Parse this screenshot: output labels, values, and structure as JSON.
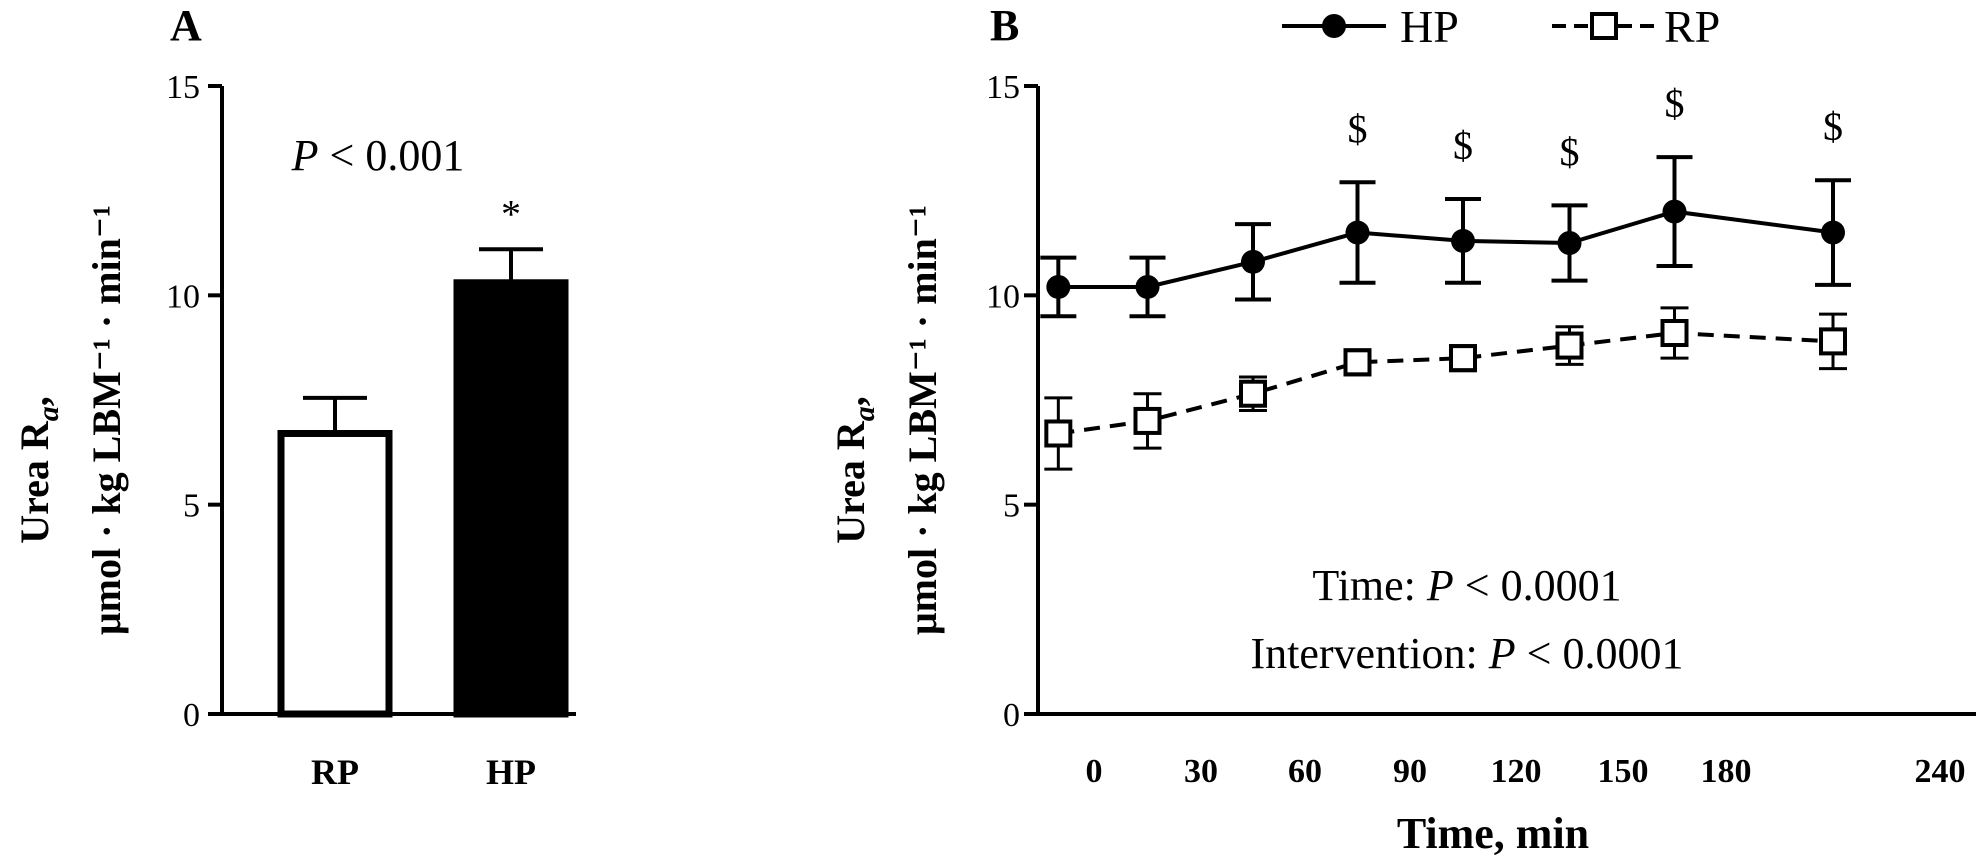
{
  "chart_data": [
    {
      "panel": "A",
      "type": "bar",
      "categories": [
        "RP",
        "HP"
      ],
      "values": [
        6.7,
        10.3
      ],
      "errors": [
        0.85,
        0.8
      ],
      "ylim": [
        0,
        15
      ],
      "yticks": [
        0,
        5,
        10,
        15
      ],
      "ylabel_line1": "Urea R",
      "ylabel_sub": "a",
      "ylabel_comma": ",",
      "ylabel_line2": "μmol · kg LBM⁻¹ · min⁻¹",
      "annotation_p": "P",
      "annotation_rest": " < 0.001",
      "significance_mark": "*",
      "bar_fills": [
        "#ffffff",
        "#000000"
      ]
    },
    {
      "panel": "B",
      "type": "line",
      "x_axis": {
        "label": "Time, min",
        "ticks": [
          0,
          30,
          60,
          90,
          120,
          150,
          180,
          240
        ],
        "xlim": [
          -15,
          240
        ]
      },
      "y_axis": {
        "ylim": [
          0,
          15
        ],
        "yticks": [
          0,
          5,
          10,
          15
        ],
        "ylabel_line1": "Urea R",
        "ylabel_sub": "a",
        "ylabel_comma": ",",
        "ylabel_line2": "μmol · kg LBM⁻¹ · min⁻¹"
      },
      "x": [
        -10,
        15,
        45,
        75,
        105,
        135,
        165,
        210
      ],
      "series": [
        {
          "name": "HP",
          "values": [
            10.2,
            10.2,
            10.8,
            11.5,
            11.3,
            11.25,
            12.0,
            11.5
          ],
          "errors": [
            0.7,
            0.7,
            0.9,
            1.2,
            1.0,
            0.9,
            1.3,
            1.25
          ],
          "marker": "filled-circle",
          "line": "solid"
        },
        {
          "name": "RP",
          "values": [
            6.7,
            7.0,
            7.65,
            8.4,
            8.5,
            8.8,
            9.1,
            8.9
          ],
          "errors": [
            0.85,
            0.65,
            0.4,
            0.3,
            0.3,
            0.45,
            0.6,
            0.65
          ],
          "marker": "open-square",
          "line": "dashed"
        }
      ],
      "significance_marks": [
        {
          "x": 75,
          "mark": "$"
        },
        {
          "x": 105,
          "mark": "$"
        },
        {
          "x": 135,
          "mark": "$"
        },
        {
          "x": 165,
          "mark": "$"
        },
        {
          "x": 210,
          "mark": "$"
        }
      ],
      "stats": [
        {
          "prefix": "Time: ",
          "p": "P",
          "rest": " < 0.0001"
        },
        {
          "prefix": "Intervention: ",
          "p": "P",
          "rest": " < 0.0001"
        }
      ],
      "legend": [
        {
          "label": "HP"
        },
        {
          "label": "RP"
        }
      ]
    }
  ]
}
